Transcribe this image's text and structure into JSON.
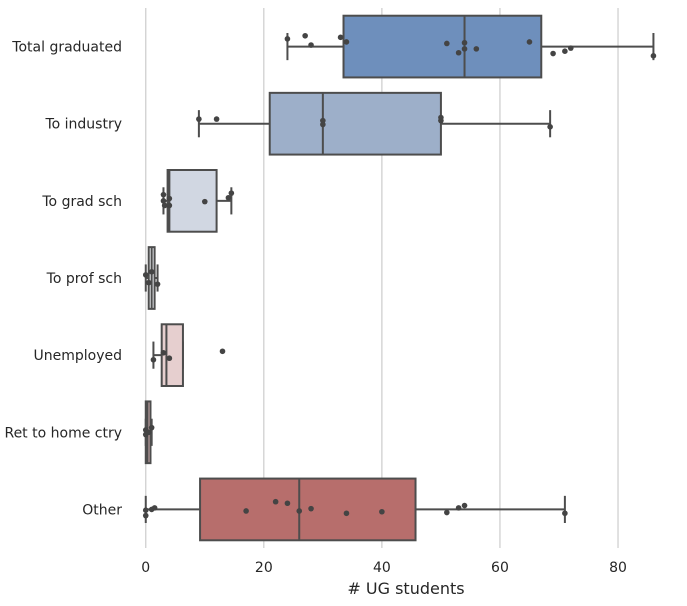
{
  "chart_data": {
    "type": "box",
    "orientation": "horizontal",
    "xlabel": "# UG students",
    "ylabel": "",
    "xlim": [
      -2.5,
      90.5
    ],
    "xticks": [
      0,
      20,
      40,
      60,
      80
    ],
    "grid": "vertical",
    "overlay": "strip points",
    "categories": [
      {
        "name": "Total graduated",
        "color": "#6e8fbc",
        "box": {
          "whisker_low": 24,
          "q1": 33.5,
          "median": 54,
          "q3": 67,
          "whisker_high": 86
        },
        "points": [
          {
            "x": 24,
            "j": -0.1
          },
          {
            "x": 27,
            "j": -0.14
          },
          {
            "x": 28,
            "j": -0.02
          },
          {
            "x": 33,
            "j": -0.12
          },
          {
            "x": 34,
            "j": -0.06
          },
          {
            "x": 51,
            "j": -0.04
          },
          {
            "x": 53,
            "j": 0.08
          },
          {
            "x": 54,
            "j": -0.05
          },
          {
            "x": 54,
            "j": 0.03
          },
          {
            "x": 56,
            "j": 0.03
          },
          {
            "x": 65,
            "j": -0.06
          },
          {
            "x": 69,
            "j": 0.09
          },
          {
            "x": 71,
            "j": 0.06
          },
          {
            "x": 72,
            "j": 0.02
          },
          {
            "x": 86,
            "j": 0.12
          }
        ]
      },
      {
        "name": "To industry",
        "color": "#9dafc9",
        "box": {
          "whisker_low": 9,
          "q1": 21,
          "median": 30,
          "q3": 50,
          "whisker_high": 68.5
        },
        "points": [
          {
            "x": 9,
            "j": -0.06
          },
          {
            "x": 12,
            "j": -0.06
          },
          {
            "x": 30,
            "j": -0.04
          },
          {
            "x": 30,
            "j": 0.01
          },
          {
            "x": 50,
            "j": -0.08
          },
          {
            "x": 50,
            "j": -0.04
          },
          {
            "x": 68.5,
            "j": 0.04
          }
        ]
      },
      {
        "name": "To grad sch",
        "color": "#d1d7e2",
        "box": {
          "whisker_low": 3,
          "q1": 3.7,
          "median": 4,
          "q3": 12,
          "whisker_high": 14.5
        },
        "points": [
          {
            "x": 3,
            "j": -0.08
          },
          {
            "x": 3,
            "j": 0.0
          },
          {
            "x": 3.2,
            "j": 0.06
          },
          {
            "x": 4,
            "j": -0.03
          },
          {
            "x": 4,
            "j": 0.06
          },
          {
            "x": 10,
            "j": 0.01
          },
          {
            "x": 14,
            "j": -0.04
          },
          {
            "x": 14.5,
            "j": -0.1
          }
        ]
      },
      {
        "name": "To prof sch",
        "color": "#eceef2",
        "box": {
          "whisker_low": 0,
          "q1": 0.5,
          "median": 1,
          "q3": 1.5,
          "whisker_high": 2
        },
        "points": [
          {
            "x": 0,
            "j": -0.04
          },
          {
            "x": 0.5,
            "j": 0.06
          },
          {
            "x": 1,
            "j": -0.08
          },
          {
            "x": 2,
            "j": 0.08
          }
        ]
      },
      {
        "name": "Unemployed",
        "color": "#e6cfcf",
        "box": {
          "whisker_low": 1.3,
          "q1": 2.7,
          "median": 3.5,
          "q3": 6.3,
          "whisker_high": 6.3
        },
        "points": [
          {
            "x": 1.3,
            "j": 0.06
          },
          {
            "x": 3,
            "j": -0.03
          },
          {
            "x": 4,
            "j": 0.04
          },
          {
            "x": 13,
            "j": -0.05
          }
        ]
      },
      {
        "name": "Ret to home ctry",
        "color": "#d8b4b4",
        "box": {
          "whisker_low": 0,
          "q1": 0,
          "median": 0.3,
          "q3": 0.8,
          "whisker_high": 1
        },
        "points": [
          {
            "x": 0,
            "j": -0.03
          },
          {
            "x": 0,
            "j": 0.03
          },
          {
            "x": 0.5,
            "j": 0.0
          },
          {
            "x": 1,
            "j": -0.06
          }
        ]
      },
      {
        "name": "Other",
        "color": "#b76e6c",
        "box": {
          "whisker_low": 0,
          "q1": 9.2,
          "median": 26,
          "q3": 45.7,
          "whisker_high": 71
        },
        "points": [
          {
            "x": 0,
            "j": 0.01
          },
          {
            "x": 0,
            "j": 0.08
          },
          {
            "x": 1,
            "j": 0.0
          },
          {
            "x": 1.5,
            "j": -0.02
          },
          {
            "x": 17,
            "j": 0.02
          },
          {
            "x": 22,
            "j": -0.1
          },
          {
            "x": 24,
            "j": -0.08
          },
          {
            "x": 26,
            "j": 0.02
          },
          {
            "x": 28,
            "j": -0.01
          },
          {
            "x": 34,
            "j": 0.05
          },
          {
            "x": 40,
            "j": 0.03
          },
          {
            "x": 51,
            "j": 0.04
          },
          {
            "x": 53,
            "j": -0.02
          },
          {
            "x": 54,
            "j": -0.05
          },
          {
            "x": 71,
            "j": 0.05
          }
        ]
      }
    ]
  }
}
